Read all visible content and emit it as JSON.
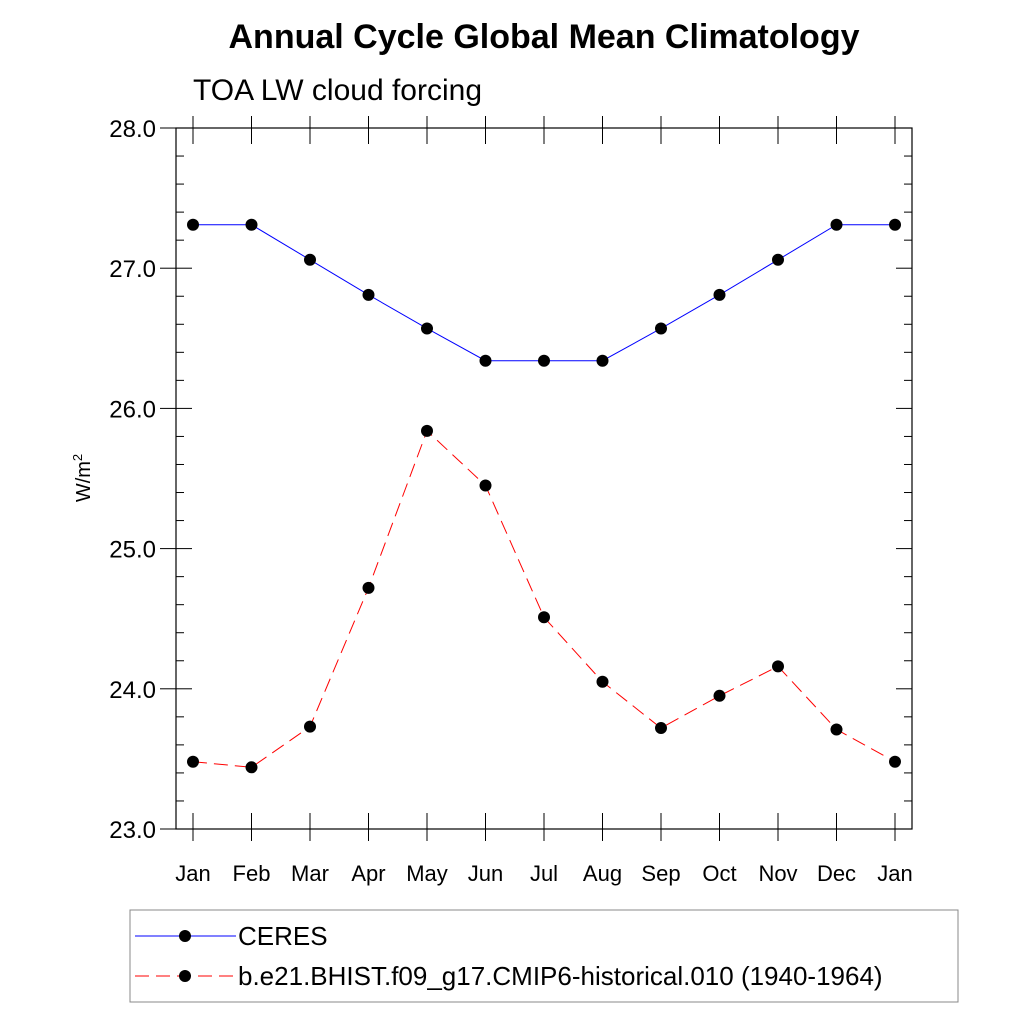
{
  "chart_data": {
    "type": "line",
    "title": "Annual Cycle Global Mean Climatology",
    "subtitle": "TOA LW cloud forcing",
    "ylabel": "W/m",
    "ylabel_superscript": "2",
    "xlabel": "",
    "categories": [
      "Jan",
      "Feb",
      "Mar",
      "Apr",
      "May",
      "Jun",
      "Jul",
      "Aug",
      "Sep",
      "Oct",
      "Nov",
      "Dec",
      "Jan"
    ],
    "ylim": [
      23.0,
      28.0
    ],
    "yticks": [
      "23.0",
      "24.0",
      "25.0",
      "26.0",
      "27.0",
      "28.0"
    ],
    "grid": false,
    "legend_position": "bottom",
    "series": [
      {
        "name": "CERES",
        "color": "#0000ff",
        "line_style": "solid",
        "marker": "filled-circle",
        "values": [
          27.31,
          27.31,
          27.06,
          26.81,
          26.57,
          26.34,
          26.34,
          26.34,
          26.57,
          26.81,
          27.06,
          27.31,
          27.31
        ]
      },
      {
        "name": "b.e21.BHIST.f09_g17.CMIP6-historical.010 (1940-1964)",
        "color": "#ff0000",
        "line_style": "dashed",
        "marker": "filled-circle",
        "values": [
          23.48,
          23.44,
          23.73,
          24.72,
          25.84,
          25.45,
          24.51,
          24.05,
          23.72,
          23.95,
          24.16,
          23.71,
          23.48
        ]
      }
    ]
  }
}
